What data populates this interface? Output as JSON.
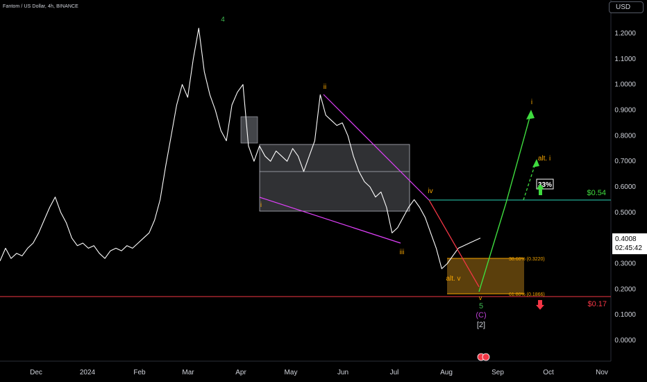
{
  "header": {
    "symbol_title": "Fantom / US Dollar, 4h, BINANCE",
    "currency": "USD"
  },
  "price_tag": {
    "price": "0.4008",
    "countdown": "02:45:42"
  },
  "chart_data": {
    "type": "line",
    "title": "Fantom / US Dollar, 4h, BINANCE",
    "ylim": [
      -0.05,
      1.3
    ],
    "y_ticks": [
      "1.2000",
      "1.1000",
      "1.0000",
      "0.9000",
      "0.8000",
      "0.7000",
      "0.6000",
      "0.5000",
      "0.4000",
      "0.3000",
      "0.2000",
      "0.1000",
      "0.0000"
    ],
    "x_ticks": [
      "Dec",
      "2024",
      "Feb",
      "Mar",
      "Apr",
      "May",
      "Jun",
      "Jul",
      "Aug",
      "Sep",
      "Oct",
      "Nov"
    ],
    "grid": false,
    "series": [
      {
        "values": [
          0.31,
          0.36,
          0.32,
          0.34,
          0.33,
          0.36,
          0.38,
          0.42,
          0.47,
          0.52,
          0.56,
          0.5,
          0.46,
          0.4,
          0.37,
          0.38,
          0.36,
          0.37,
          0.34,
          0.32,
          0.35,
          0.36,
          0.35,
          0.37,
          0.36,
          0.38,
          0.4,
          0.42,
          0.47,
          0.55,
          0.68,
          0.8,
          0.92,
          1.0,
          0.95,
          1.1,
          1.22,
          1.05,
          0.96,
          0.9,
          0.82,
          0.78,
          0.92,
          0.97,
          1.0,
          0.76,
          0.7,
          0.76,
          0.72,
          0.7,
          0.74,
          0.72,
          0.7,
          0.75,
          0.72,
          0.66,
          0.72,
          0.78,
          0.96,
          0.88,
          0.86,
          0.84,
          0.85,
          0.8,
          0.72,
          0.66,
          0.62,
          0.6,
          0.56,
          0.58,
          0.52,
          0.42,
          0.44,
          0.48,
          0.52,
          0.55,
          0.52,
          0.48,
          0.42,
          0.36,
          0.28,
          0.3,
          0.33,
          0.36,
          0.37,
          0.38,
          0.39,
          0.4
        ]
      }
    ],
    "annotations": {
      "wave_labels": [
        "4",
        "ii",
        "i",
        "iii",
        "iv",
        "alt. v",
        "v",
        "5",
        "(C)",
        "[2]",
        "i",
        "alt. i"
      ],
      "fib_levels": [
        "38.60% (0.3220)",
        "61.80% (0.1866)"
      ],
      "target_label": "$0.54",
      "support_label": "$0.17",
      "probability": "33%"
    }
  }
}
